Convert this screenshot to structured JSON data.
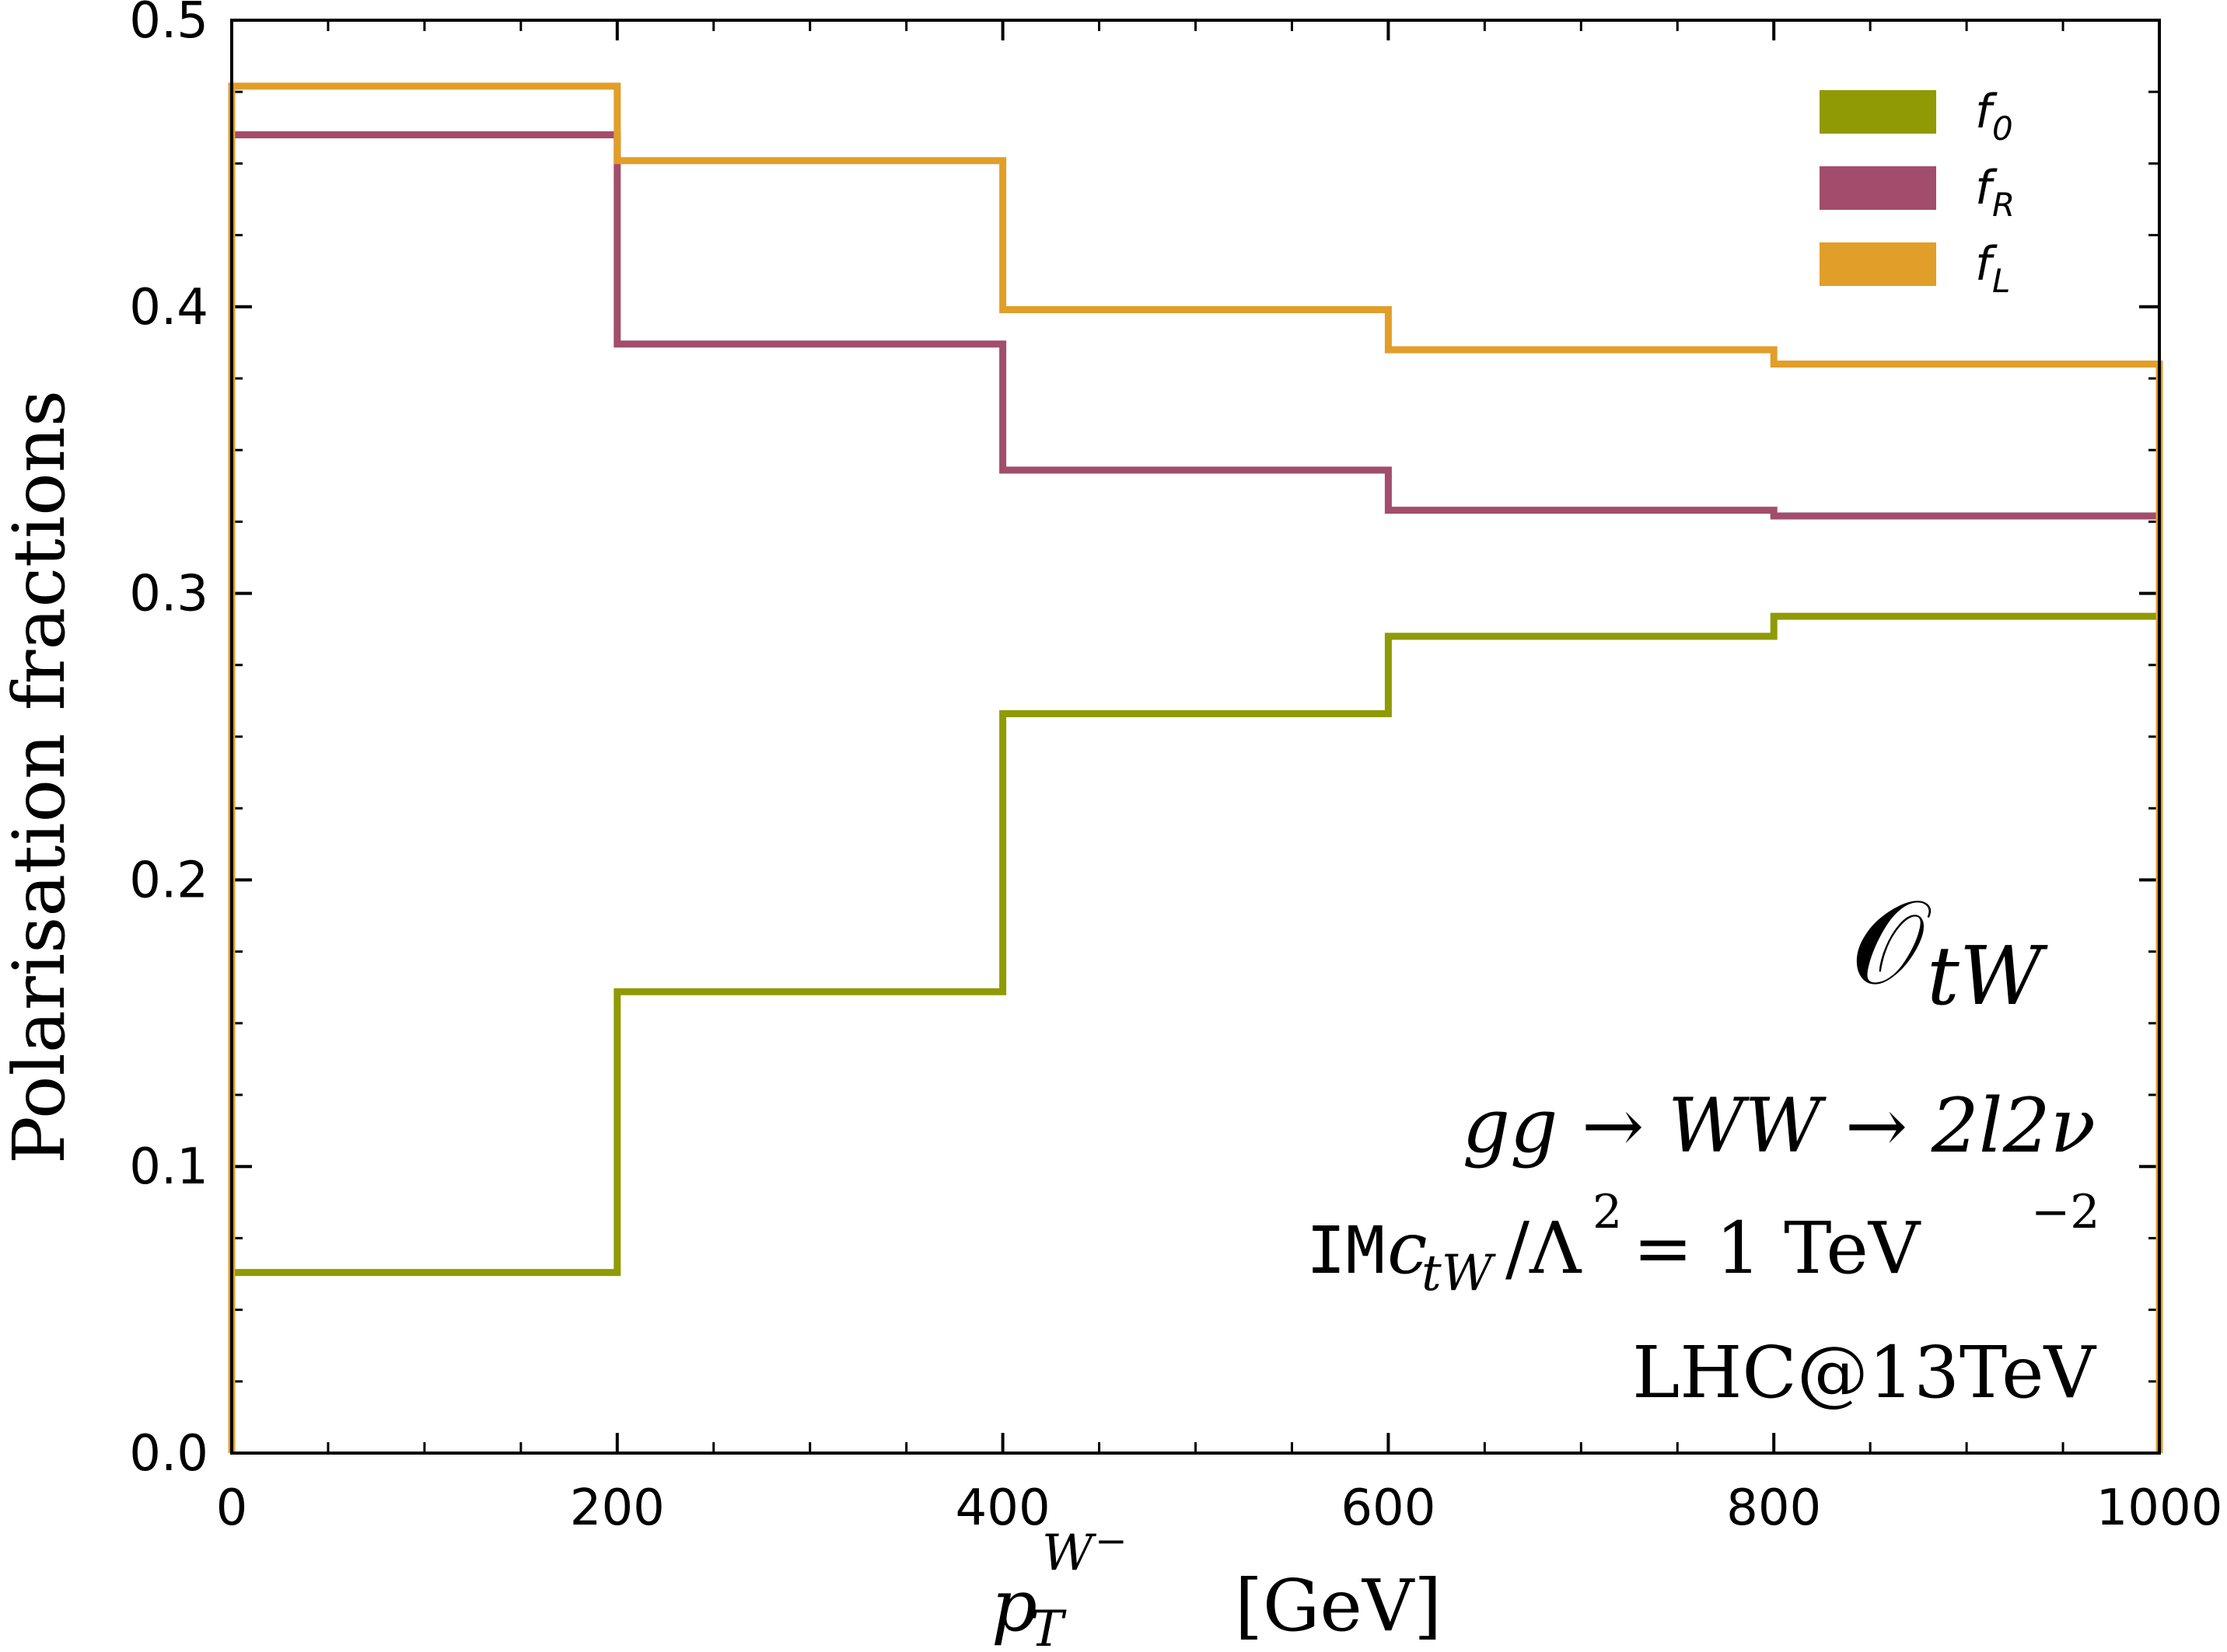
{
  "chart_data": {
    "type": "step",
    "bin_edges": [
      0,
      200,
      400,
      600,
      800,
      1000
    ],
    "xlim": [
      0,
      1000
    ],
    "ylim": [
      0.0,
      0.5
    ],
    "x_ticks": [
      "0",
      "200",
      "400",
      "600",
      "800",
      "1000"
    ],
    "y_ticks": [
      "0.0",
      "0.1",
      "0.2",
      "0.3",
      "0.4",
      "0.5"
    ],
    "x_tick_values": [
      0,
      200,
      400,
      600,
      800,
      1000
    ],
    "y_tick_values": [
      0.0,
      0.1,
      0.2,
      0.3,
      0.4,
      0.5
    ],
    "xlabel": {
      "p": "p",
      "sub": "T",
      "sup": "W",
      "sup_minus": "−",
      "unit": "[GeV]"
    },
    "ylabel": "Polarisation fractions",
    "series": [
      {
        "name": "f0",
        "label_main": "f",
        "label_sub": "0",
        "color": "#8f9a05",
        "values": [
          0.063,
          0.161,
          0.258,
          0.285,
          0.292
        ]
      },
      {
        "name": "fR",
        "label_main": "f",
        "label_sub": "R",
        "color": "#a24d6b",
        "values": [
          0.46,
          0.387,
          0.343,
          0.329,
          0.327
        ]
      },
      {
        "name": "fL",
        "label_main": "f",
        "label_sub": "L",
        "color": "#e19e29",
        "values": [
          0.477,
          0.451,
          0.399,
          0.385,
          0.38
        ]
      }
    ],
    "legend_position": "top-right",
    "annotations": {
      "operator_main": "𝒪",
      "operator_sub": "tW",
      "process": "gg → WW → 2l2ν",
      "coupling_prefix": "IM",
      "coupling_c": "c",
      "coupling_c_sub": "tW",
      "coupling_rest": "/Λ",
      "coupling_sq": "2",
      "coupling_value": "= 1 TeV",
      "coupling_exp": "−2",
      "collider": "LHC@13TeV"
    }
  }
}
